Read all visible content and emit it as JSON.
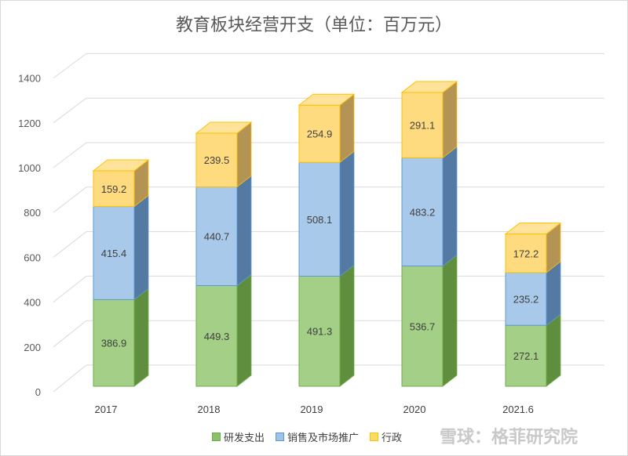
{
  "chart_data": {
    "type": "bar",
    "stacked": true,
    "style": "3d",
    "title": "教育板块经营开支（单位：百万元）",
    "categories": [
      "2017",
      "2018",
      "2019",
      "2020",
      "2021.6"
    ],
    "series": [
      {
        "name": "研发支出",
        "color": "#70ad47",
        "values": [
          386.9,
          449.3,
          491.3,
          536.7,
          272.1
        ]
      },
      {
        "name": "销售及市场推广",
        "color": "#5b9bd5",
        "values": [
          415.4,
          440.7,
          508.1,
          483.2,
          235.2
        ]
      },
      {
        "name": "行政",
        "color": "#ffc000",
        "values": [
          159.2,
          239.5,
          254.9,
          291.1,
          172.2
        ]
      }
    ],
    "yticks": [
      "0",
      "200",
      "400",
      "600",
      "800",
      "1000",
      "1200",
      "1400"
    ],
    "ylim": [
      0,
      1400
    ],
    "grid": true,
    "legend": "bottom"
  },
  "watermark": "雪球：格菲研究院"
}
